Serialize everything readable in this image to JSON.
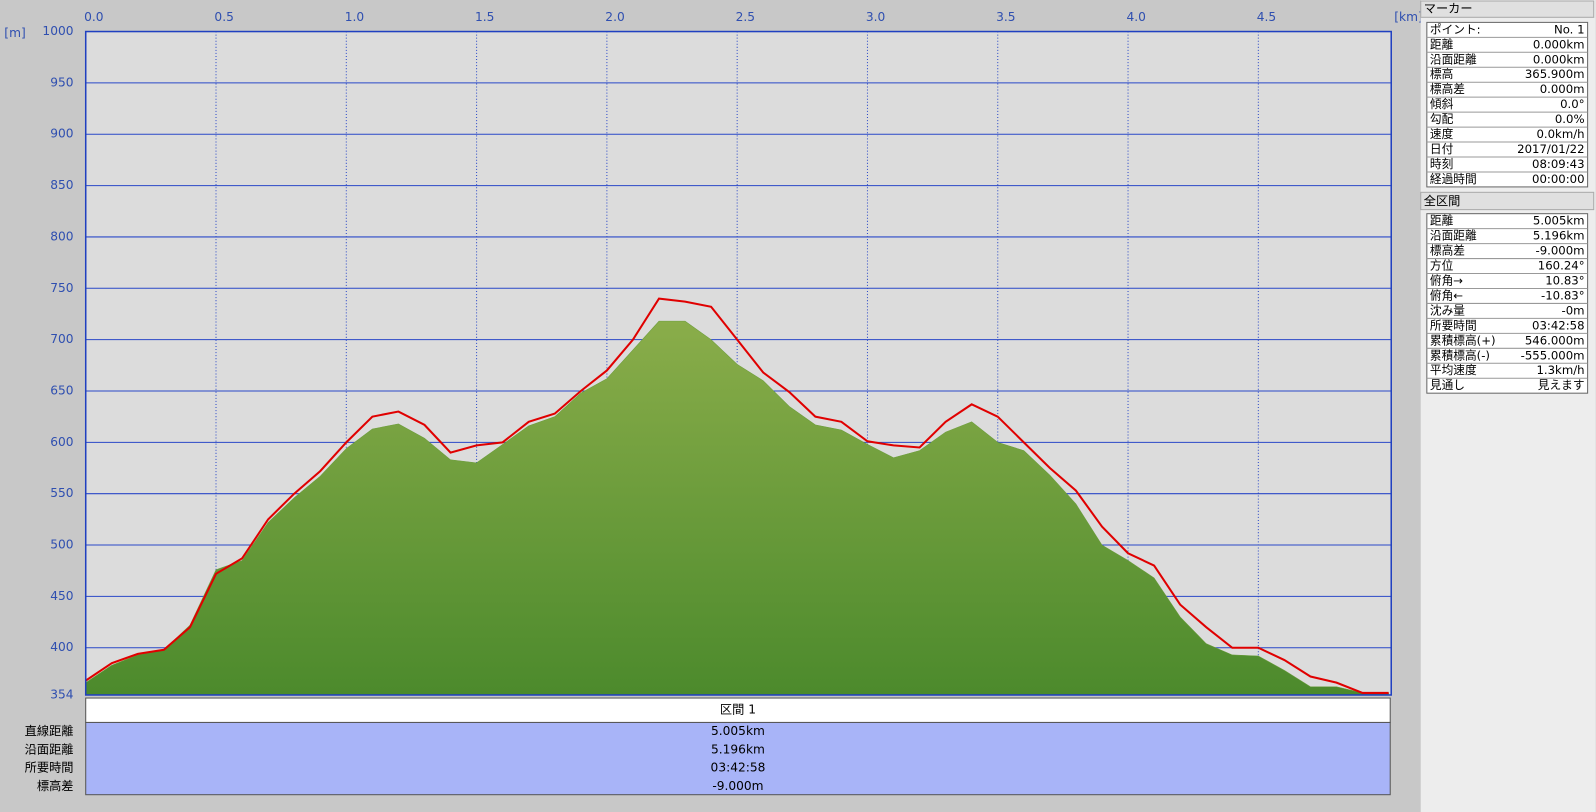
{
  "chart_data": {
    "type": "line",
    "x_unit": "[km]",
    "y_unit": "[m]",
    "xlim": [
      0,
      5.01
    ],
    "ylim": [
      354,
      1000
    ],
    "xticks": [
      {
        "value": 0,
        "label": "0.0"
      },
      0.5,
      {
        "value": 1,
        "label": "1.0"
      },
      1.5,
      {
        "value": 2,
        "label": "2.0"
      },
      2.5,
      {
        "value": 3,
        "label": "3.0"
      },
      3.5,
      {
        "value": 4,
        "label": "4.0"
      },
      4.5
    ],
    "yticks": [
      354,
      400,
      450,
      500,
      550,
      600,
      650,
      700,
      750,
      800,
      850,
      900,
      950,
      1000
    ],
    "grid": true,
    "x": [
      0,
      0.1,
      0.2,
      0.3,
      0.4,
      0.5,
      0.6,
      0.7,
      0.8,
      0.9,
      1,
      1.1,
      1.2,
      1.3,
      1.4,
      1.5,
      1.6,
      1.7,
      1.8,
      1.9,
      2,
      2.1,
      2.2,
      2.3,
      2.4,
      2.5,
      2.6,
      2.7,
      2.8,
      2.9,
      3,
      3.1,
      3.2,
      3.3,
      3.4,
      3.5,
      3.6,
      3.7,
      3.8,
      3.9,
      4,
      4.1,
      4.2,
      4.3,
      4.4,
      4.5,
      4.6,
      4.7,
      4.8,
      4.9,
      5
    ],
    "series": [
      {
        "type": "area",
        "color": "#6a9c3a",
        "values": [
          366,
          383,
          393,
          398,
          422,
          476,
          485,
          522,
          546,
          567,
          594,
          613,
          618,
          604,
          583,
          580,
          598,
          616,
          625,
          648,
          662,
          690,
          718,
          718,
          700,
          676,
          660,
          635,
          617,
          612,
          598,
          585,
          592,
          610,
          620,
          600,
          592,
          568,
          540,
          500,
          485,
          468,
          430,
          404,
          393,
          392,
          378,
          362,
          362,
          356,
          356
        ]
      },
      {
        "type": "line",
        "color": "#e00000",
        "values": [
          368,
          385,
          394,
          398,
          420,
          472,
          487,
          525,
          550,
          572,
          600,
          625,
          630,
          617,
          590,
          597,
          600,
          620,
          628,
          650,
          670,
          700,
          740,
          737,
          732,
          700,
          668,
          649,
          625,
          620,
          601,
          597,
          595,
          620,
          637,
          625,
          600,
          575,
          553,
          518,
          492,
          480,
          442,
          420,
          400,
          400,
          388,
          372,
          366,
          356,
          356
        ]
      }
    ]
  },
  "section_table": {
    "title": "区間 1",
    "rows": [
      [
        "直線距離",
        "5.005km"
      ],
      [
        "沿面距離",
        "5.196km"
      ],
      [
        "所要時間",
        "03:42:58"
      ],
      [
        "標高差",
        "-9.000m"
      ]
    ]
  },
  "marker_panel": {
    "title": "マーカー",
    "rows": [
      [
        "ポイント:",
        "No. 1"
      ],
      [
        "距離",
        "0.000km"
      ],
      [
        "沿面距離",
        "0.000km"
      ],
      [
        "標高",
        "365.900m"
      ],
      [
        "標高差",
        "0.000m"
      ],
      [
        "傾斜",
        "0.0°"
      ],
      [
        "勾配",
        "0.0%"
      ],
      [
        "速度",
        "0.0km/h"
      ],
      [
        "日付",
        "2017/01/22"
      ],
      [
        "時刻",
        "08:09:43"
      ],
      [
        "経過時間",
        "00:00:00"
      ]
    ]
  },
  "total_panel": {
    "title": "全区間",
    "rows": [
      [
        "距離",
        "5.005km"
      ],
      [
        "沿面距離",
        "5.196km"
      ],
      [
        "標高差",
        "-9.000m"
      ],
      [
        "方位",
        "160.24°"
      ],
      [
        "俯角→",
        "10.83°"
      ],
      [
        "俯角←",
        "-10.83°"
      ],
      [
        "沈み量",
        "-0m"
      ],
      [
        "所要時間",
        "03:42:58"
      ],
      [
        "累積標高(+)",
        "546.000m"
      ],
      [
        "累積標高(-)",
        "-555.000m"
      ],
      [
        "平均速度",
        "1.3km/h"
      ],
      [
        "見通し",
        "見えます"
      ]
    ]
  }
}
